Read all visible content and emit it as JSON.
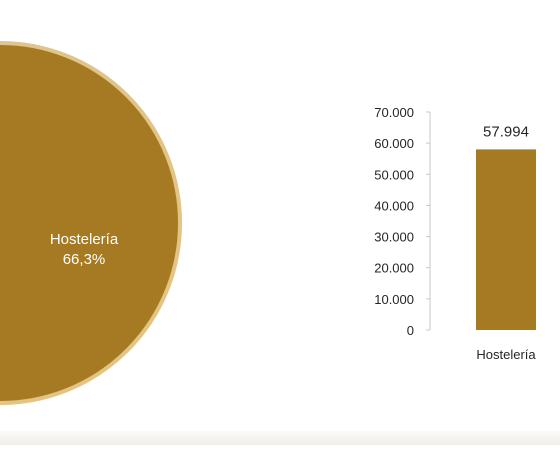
{
  "colors": {
    "accent": "#a67a22",
    "pie_border": "#e0c488",
    "axis": "#c9c9c9",
    "text": "#262626",
    "label_on_fill": "#ffffff"
  },
  "chart_data": [
    {
      "type": "pie",
      "slices": [
        {
          "label": "Hostelería",
          "percent_label": "66,3%",
          "value": 66.3
        }
      ]
    },
    {
      "type": "bar",
      "categories": [
        "Hostelería"
      ],
      "values": [
        57994
      ],
      "data_labels": [
        "57.994"
      ],
      "ylim": [
        0,
        70000
      ],
      "y_ticks": [
        0,
        10000,
        20000,
        30000,
        40000,
        50000,
        60000,
        70000
      ],
      "y_tick_labels": [
        "0",
        "10.000",
        "20.000",
        "30.000",
        "40.000",
        "50.000",
        "60.000",
        "70.000"
      ],
      "grid": false
    }
  ]
}
